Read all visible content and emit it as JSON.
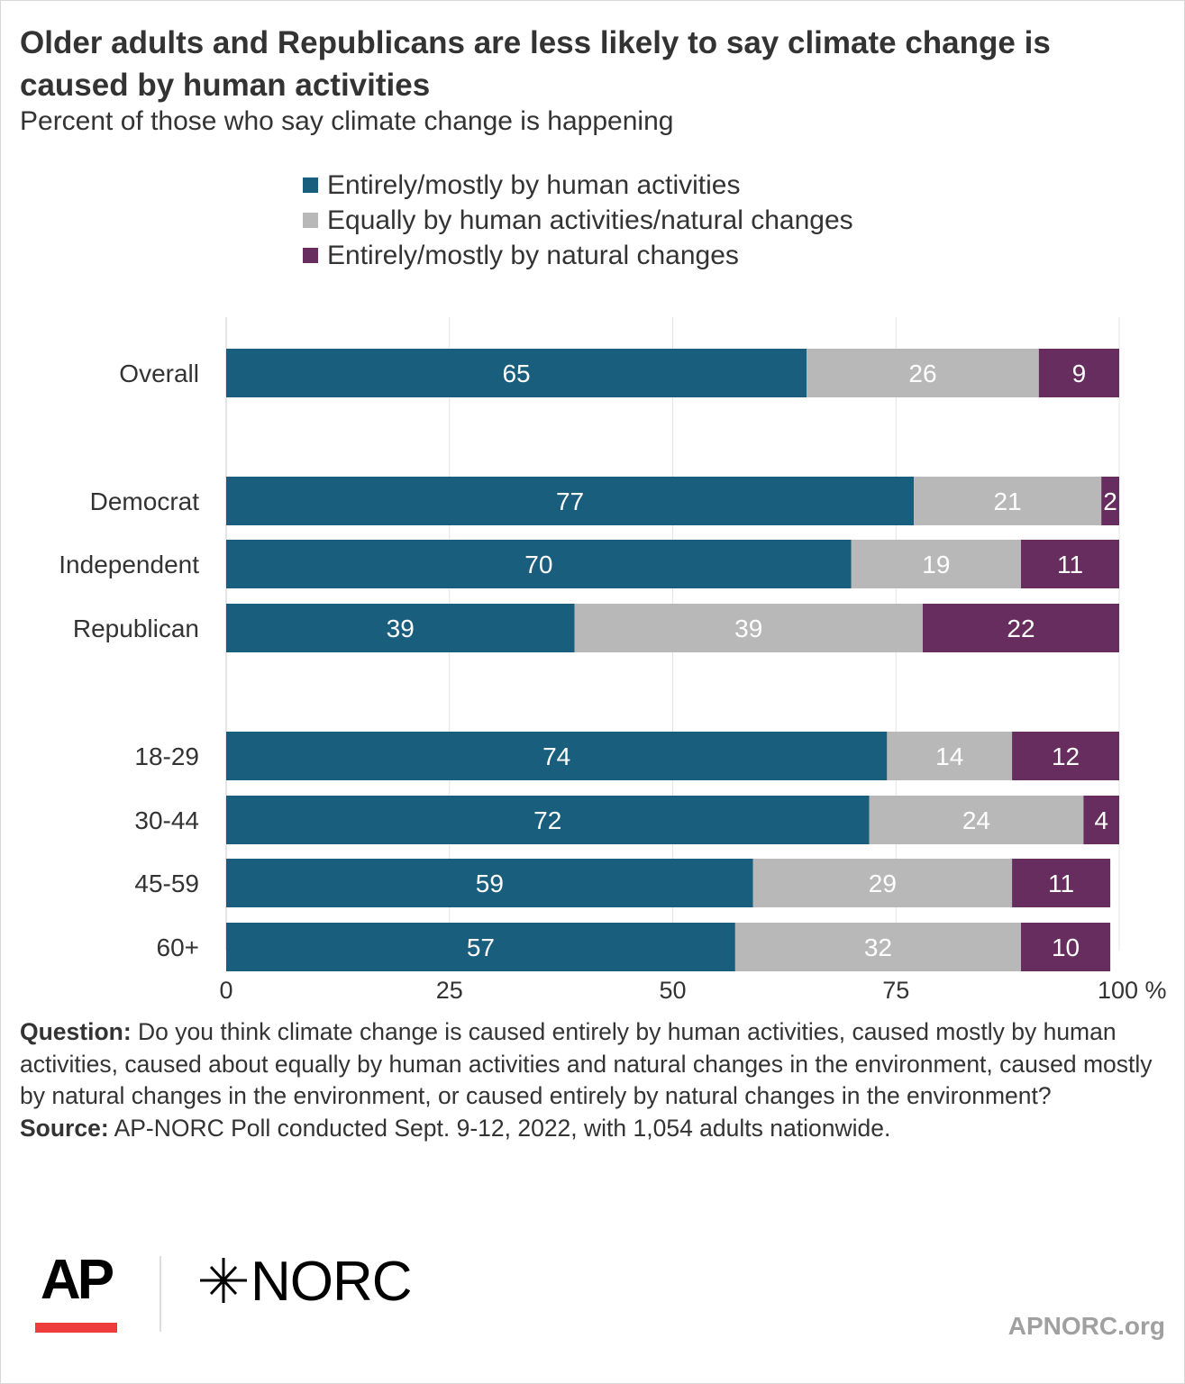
{
  "header": {
    "title": "Older adults and Republicans are less likely to say climate change is caused by human activities",
    "subtitle": "Percent of those who say climate change is happening"
  },
  "legend": [
    {
      "label": "Entirely/mostly by human activities",
      "color": "#1a5e7d"
    },
    {
      "label": "Equally by human activities/natural changes",
      "color": "#b8b8b8"
    },
    {
      "label": "Entirely/mostly by natural changes",
      "color": "#662d5e"
    }
  ],
  "chart_data": {
    "type": "bar",
    "orientation": "horizontal",
    "stacked": true,
    "categories": [
      "Overall",
      "Democrat",
      "Independent",
      "Republican",
      "18-29",
      "30-44",
      "45-59",
      "60+"
    ],
    "groups": [
      [
        "Overall"
      ],
      [
        "Democrat",
        "Independent",
        "Republican"
      ],
      [
        "18-29",
        "30-44",
        "45-59",
        "60+"
      ]
    ],
    "series": [
      {
        "name": "Entirely/mostly by human activities",
        "color": "#1a5e7d",
        "values": [
          65,
          77,
          70,
          39,
          74,
          72,
          59,
          57
        ]
      },
      {
        "name": "Equally by human activities/natural changes",
        "color": "#b8b8b8",
        "values": [
          26,
          21,
          19,
          39,
          14,
          24,
          29,
          32
        ]
      },
      {
        "name": "Entirely/mostly by natural changes",
        "color": "#662d5e",
        "values": [
          9,
          2,
          11,
          22,
          12,
          4,
          11,
          10
        ]
      }
    ],
    "xlim": [
      0,
      100
    ],
    "xticks": [
      0,
      25,
      50,
      75,
      100
    ],
    "xtick_labels": [
      "0",
      "25",
      "50",
      "75",
      "100 %"
    ],
    "grid": true,
    "legend_position": "top"
  },
  "notes": {
    "question_label": "Question:",
    "question_text": " Do you think climate change is caused entirely by human activities, caused mostly by human activities, caused about equally by human activities and natural changes in the environment, caused mostly by natural changes in the environment, or caused entirely by natural changes in the environment?",
    "source_label": "Source:",
    "source_text": " AP-NORC Poll conducted Sept. 9-12, 2022, with 1,054 adults nationwide."
  },
  "branding": {
    "ap_logo": "AP",
    "norc_logo": "NORC",
    "norc_icon": "star-icon",
    "site": "APNORC.org",
    "accent": "#ee3b3b"
  }
}
